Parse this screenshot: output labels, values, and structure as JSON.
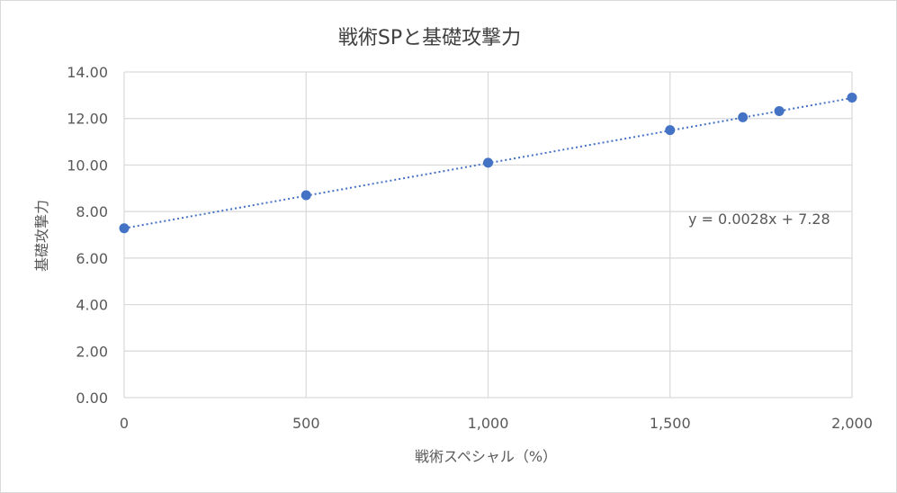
{
  "chart_data": {
    "type": "scatter",
    "title": "戦術SPと基礎攻撃力",
    "xlabel": "戦術スペシャル（%）",
    "ylabel": "基礎攻撃力",
    "xlim": [
      0,
      2000
    ],
    "ylim": [
      0,
      14
    ],
    "x_ticks": [
      0,
      500,
      1000,
      1500,
      2000
    ],
    "x_tick_labels": [
      "0",
      "500",
      "1,000",
      "1,500",
      "2,000"
    ],
    "y_ticks": [
      0,
      2,
      4,
      6,
      8,
      10,
      12,
      14
    ],
    "y_tick_labels": [
      "0.00",
      "2.00",
      "4.00",
      "6.00",
      "8.00",
      "10.00",
      "12.00",
      "14.00"
    ],
    "grid": true,
    "series": [
      {
        "x": [
          0,
          500,
          1000,
          1500,
          1700,
          1800,
          2000
        ],
        "y": [
          7.28,
          8.7,
          10.1,
          11.5,
          12.05,
          12.32,
          12.9
        ],
        "color": "#4472c4"
      }
    ],
    "trendline": {
      "type": "linear",
      "slope": 0.0028,
      "intercept": 7.28,
      "style": "dotted",
      "color": "#4472c4",
      "equation_label": "y = 0.0028x + 7.28"
    }
  }
}
